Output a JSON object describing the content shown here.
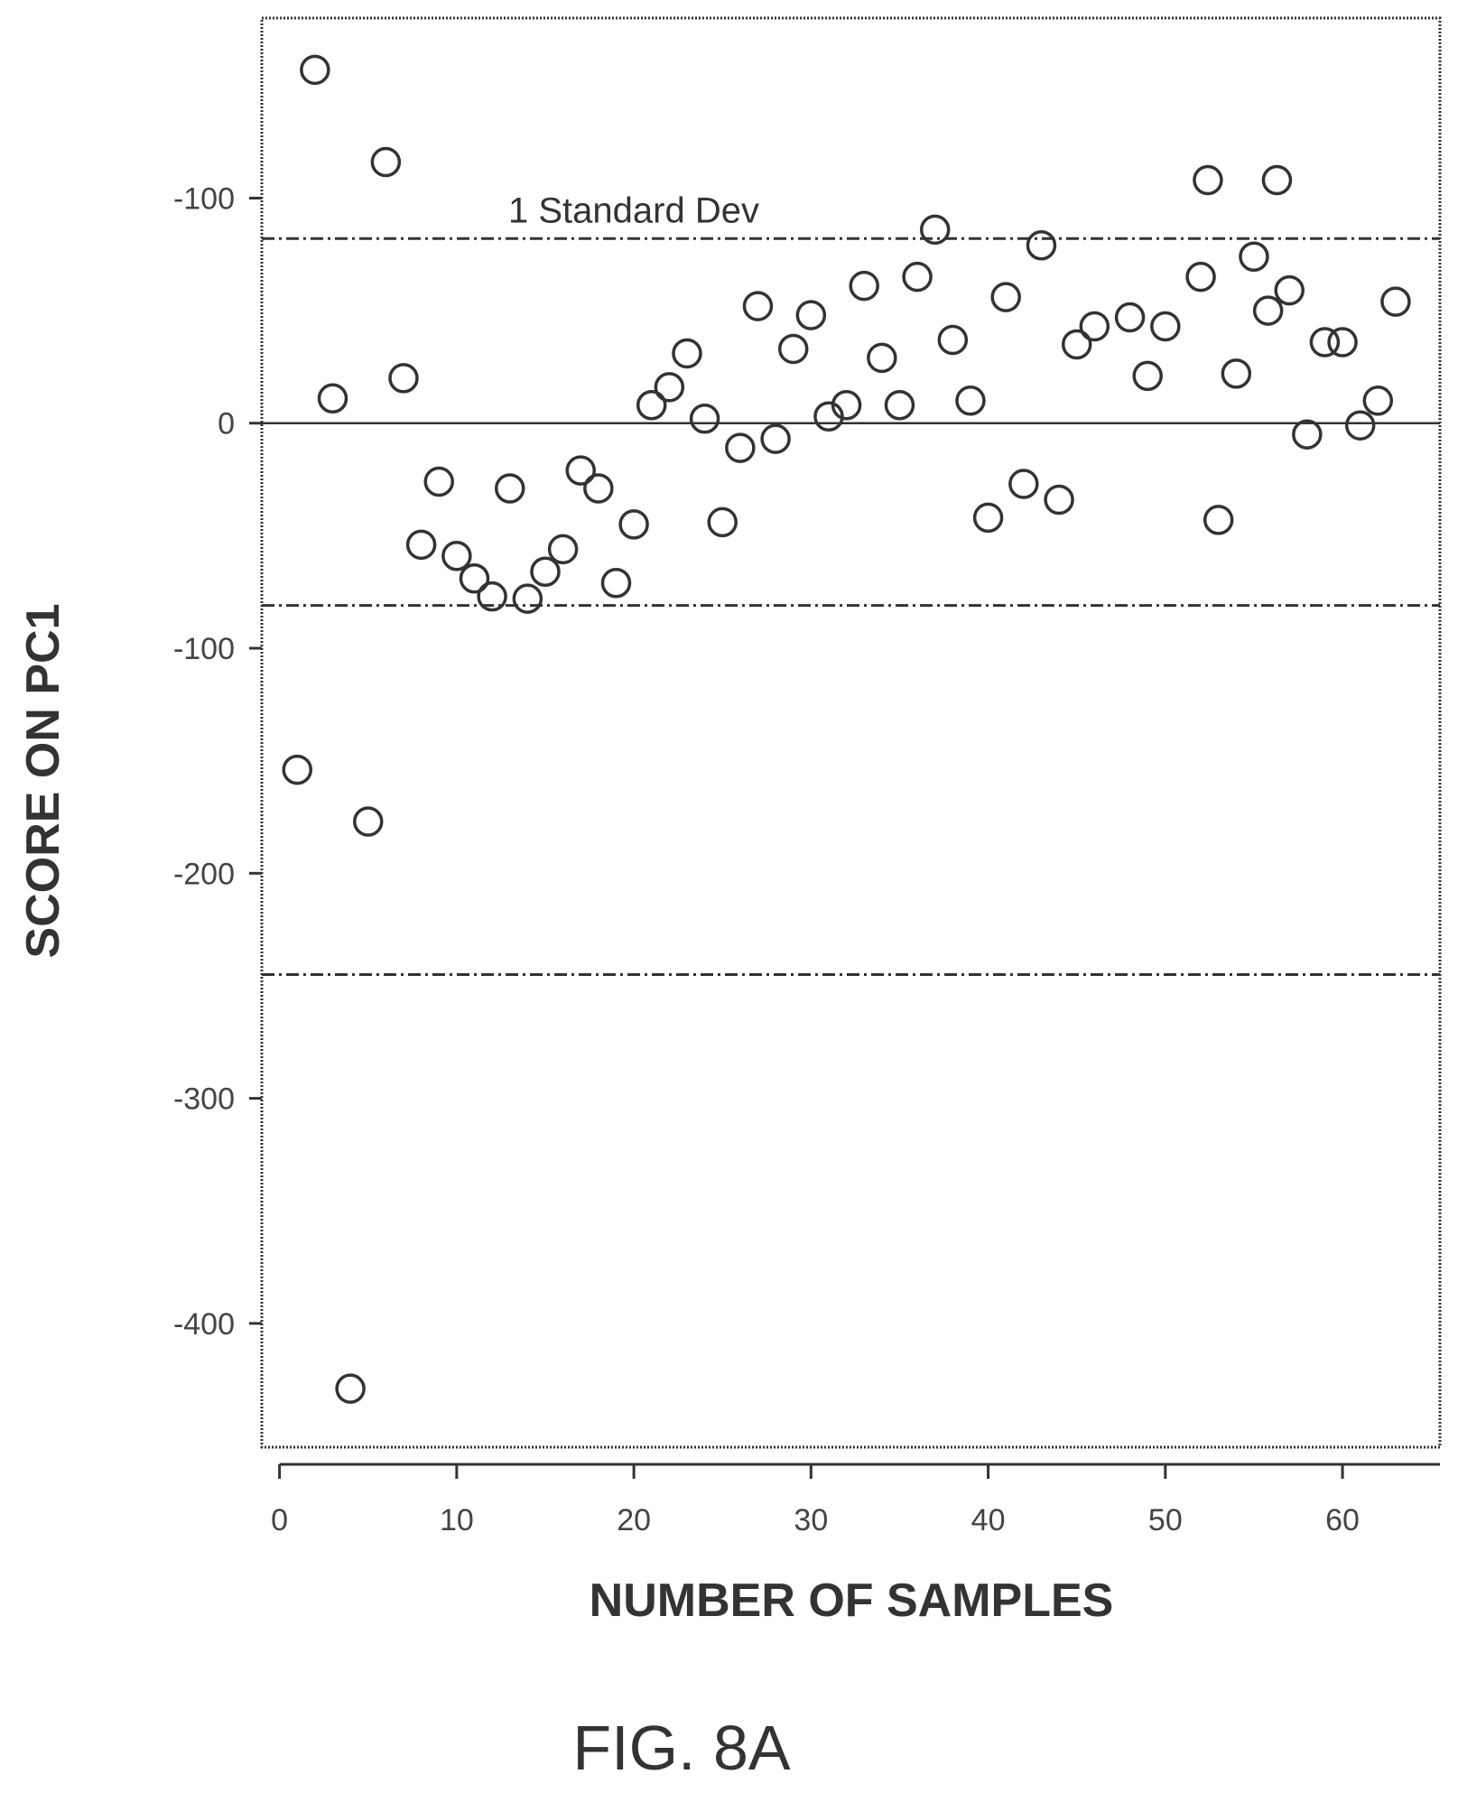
{
  "chart_data": {
    "type": "scatter",
    "title": "",
    "xlabel": "NUMBER OF SAMPLES",
    "ylabel": "SCORE ON PC1",
    "xlim": [
      -1,
      65.5
    ],
    "ylim": [
      -455,
      180
    ],
    "x_ticks": [
      0,
      10,
      20,
      30,
      40,
      50,
      60
    ],
    "x_tick_labels": [
      "0",
      "10",
      "20",
      "30",
      "40",
      "50",
      "60"
    ],
    "y_ticks": [
      100,
      0,
      -100,
      -200,
      -300,
      -400
    ],
    "y_tick_labels": [
      "-100",
      "0",
      "-100",
      "-200",
      "-300",
      "-400"
    ],
    "grid": false,
    "reference_lines": [
      {
        "y": 0,
        "style": "solid"
      },
      {
        "y": 82,
        "style": "dashed",
        "label": "1 Standard Dev"
      },
      {
        "y": -81,
        "style": "dashed"
      },
      {
        "y": -245,
        "style": "dashed"
      }
    ],
    "series": [
      {
        "marker": "open-circle",
        "points": [
          [
            1,
            -154
          ],
          [
            2,
            157
          ],
          [
            3,
            11
          ],
          [
            4,
            -429
          ],
          [
            5,
            -177
          ],
          [
            6,
            116
          ],
          [
            7,
            20
          ],
          [
            8,
            -54
          ],
          [
            9,
            -26
          ],
          [
            10,
            -59
          ],
          [
            11,
            -69
          ],
          [
            12,
            -77
          ],
          [
            13,
            -29
          ],
          [
            14,
            -78
          ],
          [
            15,
            -66
          ],
          [
            16,
            -56
          ],
          [
            17,
            -21
          ],
          [
            18,
            -29
          ],
          [
            19,
            -71
          ],
          [
            20,
            -45
          ],
          [
            21,
            8
          ],
          [
            22,
            16
          ],
          [
            23,
            31
          ],
          [
            24,
            2
          ],
          [
            25,
            -44
          ],
          [
            26,
            -11
          ],
          [
            27,
            52
          ],
          [
            28,
            -7
          ],
          [
            29,
            33
          ],
          [
            30,
            48
          ],
          [
            31,
            3
          ],
          [
            32,
            8
          ],
          [
            33,
            61
          ],
          [
            34,
            29
          ],
          [
            35,
            8
          ],
          [
            36,
            65
          ],
          [
            37,
            86
          ],
          [
            38,
            37
          ],
          [
            39,
            10
          ],
          [
            40,
            -42
          ],
          [
            41,
            56
          ],
          [
            42,
            -27
          ],
          [
            43,
            79
          ],
          [
            44,
            -34
          ],
          [
            45,
            35
          ],
          [
            46,
            43
          ],
          [
            48,
            47
          ],
          [
            49,
            21
          ],
          [
            50,
            43
          ],
          [
            52,
            65
          ],
          [
            52.4,
            108
          ],
          [
            53,
            -43
          ],
          [
            54,
            22
          ],
          [
            55,
            74
          ],
          [
            55.8,
            50
          ],
          [
            56.3,
            108
          ],
          [
            57,
            59
          ],
          [
            58,
            -5
          ],
          [
            59,
            36
          ],
          [
            60,
            36
          ],
          [
            61,
            -1
          ],
          [
            62,
            10
          ],
          [
            63,
            54
          ]
        ]
      }
    ]
  },
  "figure": {
    "caption": "FIG. 8A"
  },
  "colors": {
    "ink": "#333333",
    "background": "#ffffff"
  }
}
